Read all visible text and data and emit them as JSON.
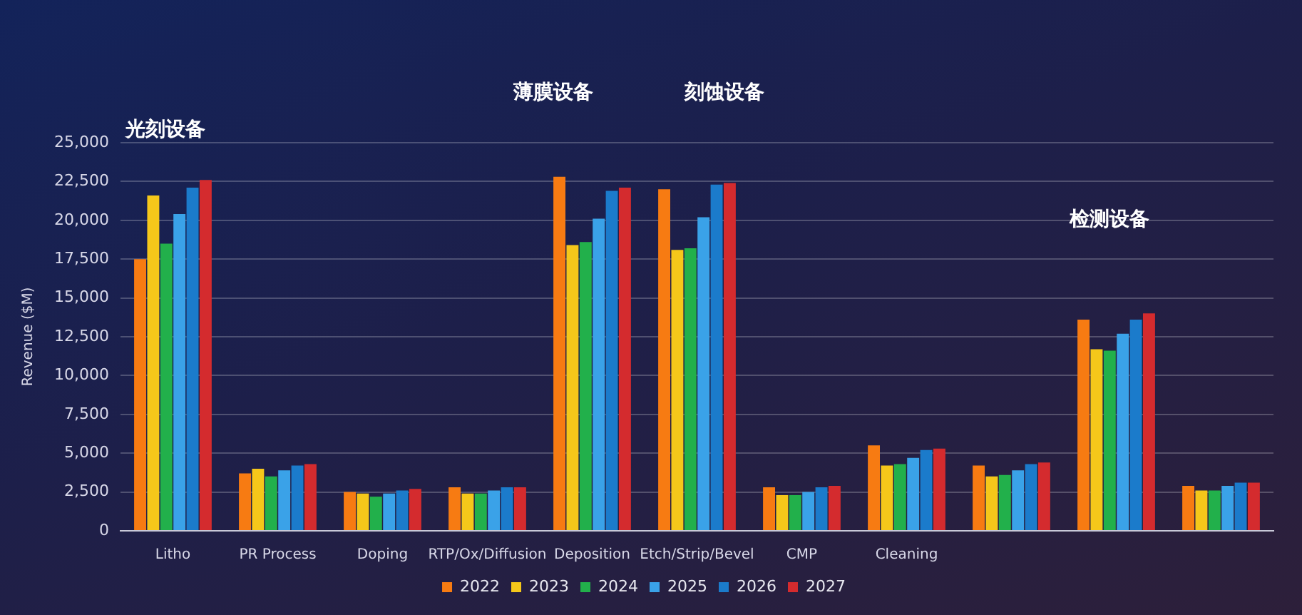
{
  "chart_data": {
    "type": "bar",
    "ylabel": "Revenue ($M)",
    "categories": [
      "Litho",
      "PR Process",
      "Doping",
      "RTP/Ox/Diffusion",
      "Deposition",
      "Etch/Strip/Bevel",
      "CMP",
      "Cleaning",
      null,
      null,
      null
    ],
    "series": [
      {
        "name": "2022",
        "color": "#f77b12",
        "values": [
          17500,
          3700,
          2500,
          2800,
          22800,
          22000,
          2800,
          5500,
          4200,
          13600,
          2900
        ]
      },
      {
        "name": "2023",
        "color": "#f5c71a",
        "values": [
          21600,
          4000,
          2400,
          2400,
          18400,
          18100,
          2300,
          4200,
          3500,
          11700,
          2600
        ]
      },
      {
        "name": "2024",
        "color": "#22b04b",
        "values": [
          18500,
          3500,
          2200,
          2400,
          18600,
          18200,
          2300,
          4300,
          3600,
          11600,
          2600
        ]
      },
      {
        "name": "2025",
        "color": "#3aa2e8",
        "values": [
          20400,
          3900,
          2400,
          2600,
          20100,
          20200,
          2500,
          4700,
          3900,
          12700,
          2900
        ]
      },
      {
        "name": "2026",
        "color": "#1b7bcb",
        "values": [
          22100,
          4200,
          2600,
          2800,
          21900,
          22300,
          2800,
          5200,
          4300,
          13600,
          3100
        ]
      },
      {
        "name": "2027",
        "color": "#d42b2e",
        "values": [
          22600,
          4300,
          2700,
          2800,
          22100,
          22400,
          2900,
          5300,
          4400,
          14000,
          3100
        ]
      }
    ],
    "ylim": [
      0,
      25000
    ],
    "yticks": [
      0,
      {
        "value": 2500,
        "label": "2,500"
      },
      {
        "value": 5000,
        "label": "5,000"
      },
      {
        "value": 7500,
        "label": "7,500"
      },
      {
        "value": 10000,
        "label": "10,000"
      },
      {
        "value": 12500,
        "label": "12,500"
      },
      {
        "value": 15000,
        "label": "15,000"
      },
      {
        "value": 17500,
        "label": "17,500"
      },
      {
        "value": 20000,
        "label": "20,000"
      },
      {
        "value": 22500,
        "label": "22,500"
      },
      {
        "value": 25000,
        "label": "25,000"
      }
    ],
    "grid": "y",
    "legend": "bottom",
    "annotations": [
      "光刻设备",
      "薄膜设备",
      "刻蚀设备",
      "检测设备"
    ]
  }
}
